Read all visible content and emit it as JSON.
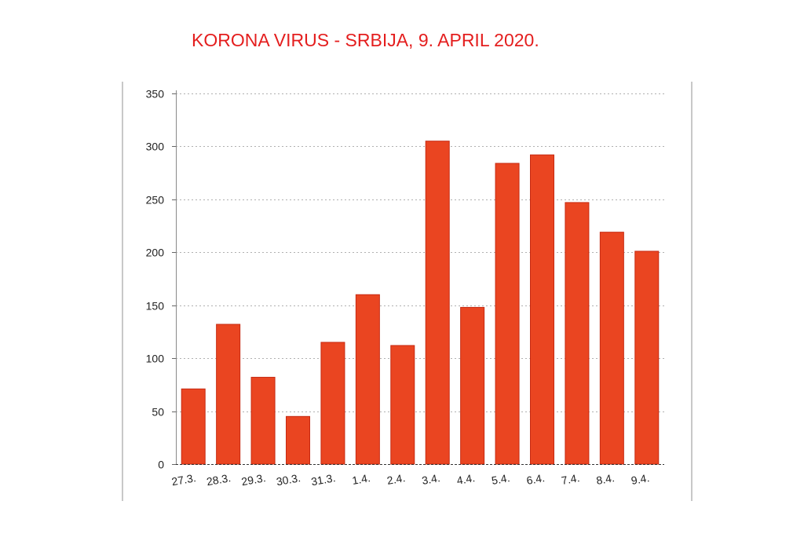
{
  "title": "KORONA VIRUS - SRBIJA, 9. APRIL 2020.",
  "chart_data": {
    "type": "bar",
    "title": "KORONA VIRUS - SRBIJA, 9. APRIL 2020.",
    "xlabel": "",
    "ylabel": "",
    "categories": [
      "27.3.",
      "28.3.",
      "29.3.",
      "30.3.",
      "31.3.",
      "1.4.",
      "2.4.",
      "3.4.",
      "4.4.",
      "5.4.",
      "6.4.",
      "7.4.",
      "8.4.",
      "9.4."
    ],
    "values": [
      71,
      132,
      82,
      45,
      115,
      160,
      112,
      305,
      148,
      284,
      292,
      247,
      219,
      201
    ],
    "ylim": [
      0,
      350
    ],
    "yticks": [
      0,
      50,
      100,
      150,
      200,
      250,
      300,
      350
    ],
    "grid": true,
    "bar_color": "#ea4521",
    "bar_edge_color": "#c62a12",
    "title_color": "#e41e1e"
  }
}
